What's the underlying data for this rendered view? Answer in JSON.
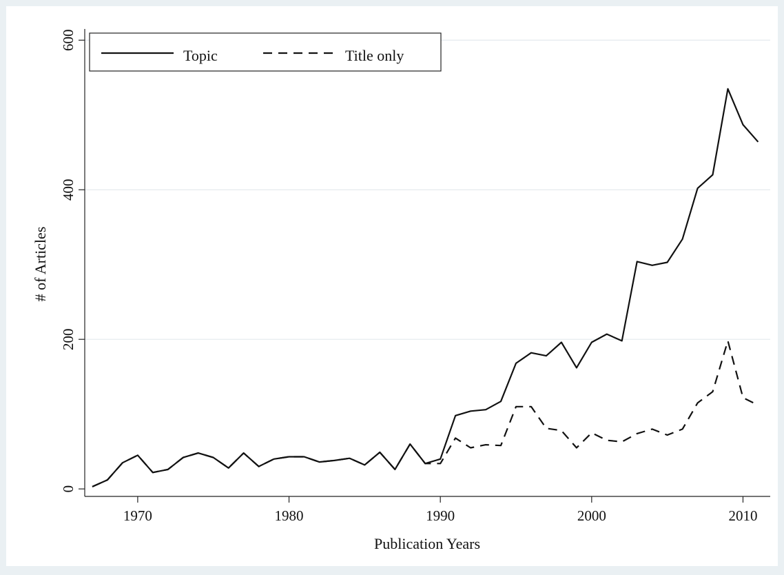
{
  "chart_data": {
    "type": "line",
    "title": "",
    "xlabel": "Publication Years",
    "ylabel": "# of Articles",
    "xlim": [
      1966.5,
      2011.8
    ],
    "ylim": [
      -10,
      615
    ],
    "x_ticks": [
      1970,
      1980,
      1990,
      2000,
      2010
    ],
    "y_ticks": [
      0,
      200,
      400,
      600
    ],
    "grid": true,
    "legend_position": "top-left",
    "x": [
      1967,
      1968,
      1969,
      1970,
      1971,
      1972,
      1973,
      1974,
      1975,
      1976,
      1977,
      1978,
      1979,
      1980,
      1981,
      1982,
      1983,
      1984,
      1985,
      1986,
      1987,
      1988,
      1989,
      1990,
      1991,
      1992,
      1993,
      1994,
      1995,
      1996,
      1997,
      1998,
      1999,
      2000,
      2001,
      2002,
      2003,
      2004,
      2005,
      2006,
      2007,
      2008,
      2009,
      2010,
      2011
    ],
    "series": [
      {
        "name": "Topic",
        "style": "solid",
        "values": [
          3,
          12,
          35,
          45,
          22,
          26,
          42,
          48,
          42,
          28,
          48,
          30,
          40,
          43,
          43,
          36,
          38,
          41,
          32,
          49,
          26,
          60,
          34,
          40,
          98,
          104,
          106,
          117,
          168,
          182,
          178,
          196,
          162,
          196,
          207,
          198,
          304,
          299,
          303,
          334,
          402,
          420,
          535,
          487,
          464
        ]
      },
      {
        "name": "Title only",
        "style": "dashed",
        "values": [
          3,
          12,
          35,
          45,
          22,
          26,
          42,
          48,
          42,
          28,
          48,
          30,
          40,
          43,
          43,
          36,
          38,
          41,
          32,
          49,
          26,
          60,
          34,
          34,
          68,
          55,
          59,
          58,
          110,
          110,
          81,
          78,
          55,
          75,
          65,
          63,
          74,
          80,
          72,
          80,
          115,
          130,
          198,
          122,
          112
        ]
      }
    ],
    "colors": {
      "line": "#111111",
      "background": "#eaf0f3",
      "plot_background": "#ffffff",
      "grid": "#e4eaee"
    }
  }
}
